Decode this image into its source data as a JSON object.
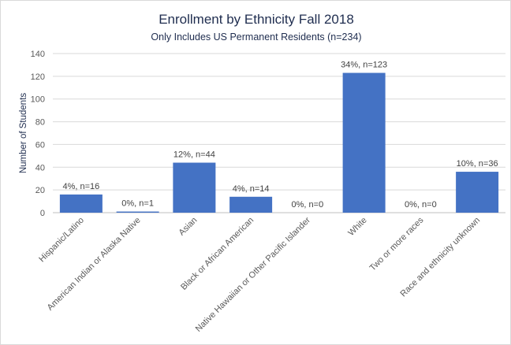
{
  "chart_data": {
    "type": "bar",
    "title": "Enrollment by Ethnicity Fall 2018",
    "subtitle": "Only Includes US Permanent Residents (n=234)",
    "xlabel": "",
    "ylabel": "Number  of Students",
    "ylim": [
      0,
      140
    ],
    "yticks": [
      0,
      20,
      40,
      60,
      80,
      100,
      120,
      140
    ],
    "grid": true,
    "legend": "none",
    "bar_color": "#4472c4",
    "categories": [
      "Hispanic/Latino",
      "American Indian or Alaska Native",
      "Asian",
      "Black or African American",
      "Native Hawaiian or Other Pacific Islander",
      "White",
      "Two or more races",
      "Race and ethnicity unknown"
    ],
    "values": [
      16,
      1,
      44,
      14,
      0,
      123,
      0,
      36
    ],
    "data_labels": [
      "4%, n=16",
      "0%, n=1",
      "12%, n=44",
      "4%, n=14",
      "0%, n=0",
      "34%, n=123",
      "0%, n=0",
      "10%, n=36"
    ]
  }
}
